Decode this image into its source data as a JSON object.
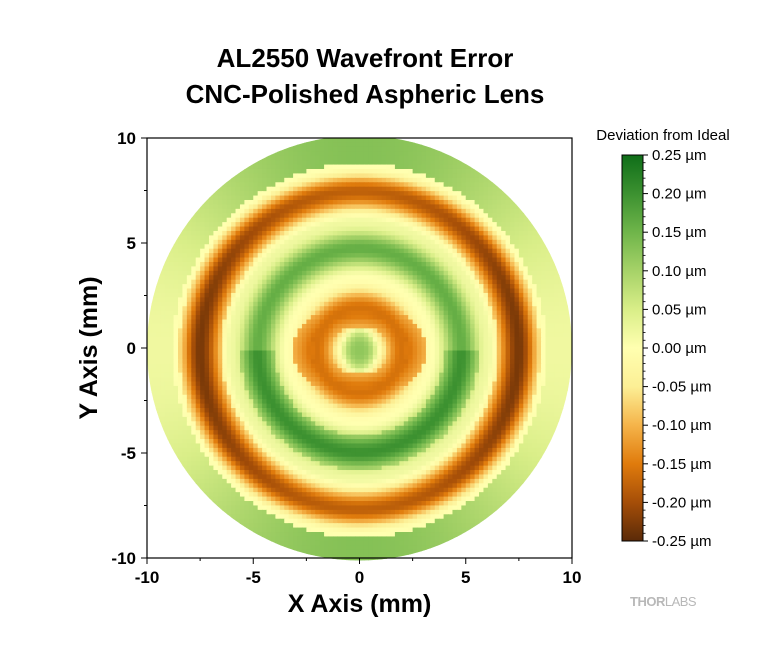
{
  "chart_data": {
    "type": "heatmap",
    "title": "AL2550 Wavefront Error",
    "subtitle": "CNC-Polished Aspheric Lens",
    "xlabel": "X Axis (mm)",
    "ylabel": "Y Axis (mm)",
    "xlim": [
      -10,
      10
    ],
    "ylim": [
      -10,
      10
    ],
    "x_ticks": [
      -10,
      -5,
      0,
      5,
      10
    ],
    "y_ticks": [
      -10,
      -5,
      0,
      5,
      10
    ],
    "x_tick_labels": [
      "-10",
      "-5",
      "0",
      "5",
      "10"
    ],
    "y_tick_labels": [
      "-10",
      "-5",
      "0",
      "5",
      "10"
    ],
    "aperture_radius_mm": 10,
    "colorbar": {
      "title": "Deviation from Ideal",
      "min": -0.25,
      "max": 0.25,
      "unit": "µm",
      "ticks": [
        0.25,
        0.2,
        0.15,
        0.1,
        0.05,
        0.0,
        -0.05,
        -0.1,
        -0.15,
        -0.2,
        -0.25
      ],
      "tick_labels": [
        "0.25 µm",
        "0.20 µm",
        "0.15 µm",
        "0.10 µm",
        "0.05 µm",
        "0.00 µm",
        "-0.05 µm",
        "-0.10 µm",
        "-0.15 µm",
        "-0.20 µm",
        "-0.25 µm"
      ],
      "colors": [
        "#5a2a08",
        "#a54e08",
        "#e07b0c",
        "#f5b44a",
        "#fcef95",
        "#ffffb0",
        "#d9ee88",
        "#a6d268",
        "#6fb54a",
        "#3c9130",
        "#0f6e19"
      ]
    },
    "rings": [
      {
        "r_mm": 0.0,
        "value": 0.12,
        "shape": "central spot",
        "sx": 0.8,
        "sy": 1.4
      },
      {
        "r_mm": 2.0,
        "value": -0.16,
        "shape": "elliptical ring",
        "sx": 1.1,
        "sy": 0.8
      },
      {
        "r_mm": 3.4,
        "value": 0.0
      },
      {
        "r_mm": 4.8,
        "value": 0.16,
        "shape": "elliptical ring",
        "sx": 0.9,
        "sy": 1.1
      },
      {
        "r_mm": 6.0,
        "value": 0.02
      },
      {
        "r_mm": 7.5,
        "value": -0.18,
        "note": "darkest on left and right edges"
      },
      {
        "r_mm": 8.7,
        "value": 0.0
      },
      {
        "r_mm": 9.6,
        "value": 0.12,
        "note": "green outer rim top and bottom"
      }
    ]
  },
  "logo": {
    "text_bold": "THOR",
    "text_light": "LABS"
  }
}
